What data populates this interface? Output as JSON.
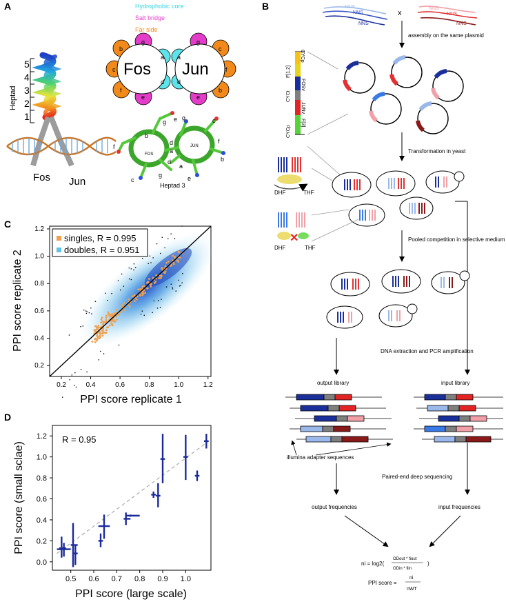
{
  "panels": {
    "a": "A",
    "b": "B",
    "c": "C",
    "d": "D"
  },
  "panel_a": {
    "heptad_label": "Heptad",
    "heptad_numbers": [
      "5",
      "4",
      "3",
      "2",
      "1"
    ],
    "fos_label": "Fos",
    "jun_label": "Jun",
    "legend": {
      "core": "Hydrophobic core",
      "salt": "Salt bridge",
      "far": "Far side"
    },
    "colors": {
      "core": "#5de3ea",
      "salt": "#e33cc9",
      "far": "#f28a1b"
    },
    "wheel_fos": "Fos",
    "wheel_jun": "Jun",
    "fos_petals": [
      "b",
      "c",
      "f",
      "g",
      "e",
      "a",
      "d"
    ],
    "jun_petals": [
      "c",
      "f",
      "b",
      "g",
      "e",
      "a",
      "d"
    ],
    "helix_fos_label": "FOS",
    "helix_jun_label": "JUN",
    "heptad3_label": "Heptad 3",
    "helix_letters": [
      "b",
      "e",
      "a",
      "d",
      "f",
      "g",
      "c",
      "d",
      "g",
      "c",
      "a",
      "f",
      "b",
      "e",
      "g"
    ]
  },
  "panel_b": {
    "nns_labels": [
      "NNS",
      "NNS",
      "NNS",
      "NNS",
      "NNS",
      "NNS"
    ],
    "cross": "x",
    "assembly": "assembly on the same plasmid",
    "bar_labels": [
      "CYCp",
      "F[1,2]",
      "FOSv",
      "CYCt",
      "JUNv",
      "F[3]",
      "CYCp"
    ],
    "transformation": "Transformation in yeast",
    "dhf": "DHF",
    "thf": "THF",
    "dhf2": "DHF",
    "thf2": "THF",
    "pooled": "Pooled competition in selective medium",
    "dna": "DNA extraction and PCR amplification",
    "output_library": "output library",
    "input_library": "input library",
    "illumina": "illumina adapter sequences",
    "paired": "Paired-end deep sequencing",
    "output_freq": "output frequencies",
    "input_freq": "input frequencies",
    "formula_lhs": "ni = log2(",
    "formula_num": "ODout * fiout",
    "formula_den": "ODin * fiin",
    "formula_close": ")",
    "ppi_lhs": "PPI score =",
    "ppi_num": "ni",
    "ppi_den": "nWT"
  },
  "chart_data": [
    {
      "type": "scatter",
      "xlabel": "PPI score replicate 1",
      "ylabel": "PPI score replicate 2",
      "xlim": [
        0.12,
        1.22
      ],
      "ylim": [
        0.12,
        1.22
      ],
      "xticks": [
        "0.2",
        "0.4",
        "0.6",
        "0.8",
        "1.0",
        "1.2"
      ],
      "yticks": [
        "0.2",
        "0.4",
        "0.6",
        "0.8",
        "1.0",
        "1.2"
      ],
      "legend_position": "top-left",
      "series": [
        {
          "name": "singles, R = 0.995",
          "color": "#f0a050"
        },
        {
          "name": "doubles, R = 0.951",
          "color": "#5fc3e8"
        }
      ],
      "diagonal": true
    },
    {
      "type": "scatter",
      "xlabel": "PPI score (large scale)",
      "ylabel": "PPI score (small sclae)",
      "annotation": "R = 0.95",
      "xlim": [
        0.42,
        1.11
      ],
      "ylim": [
        -0.08,
        1.3
      ],
      "xticks": [
        "0.5",
        "0.6",
        "0.7",
        "0.8",
        "0.9",
        "1.0"
      ],
      "yticks": [
        "0.0",
        "0.2",
        "0.4",
        "0.6",
        "0.8",
        "1.0",
        "1.2"
      ],
      "points": [
        {
          "x": 0.46,
          "y": 0.13,
          "ylo": 0.04,
          "yhi": 0.24,
          "xlo": 0.45,
          "xhi": 0.48
        },
        {
          "x": 0.47,
          "y": 0.12,
          "ylo": 0.05,
          "yhi": 0.18,
          "xlo": 0.44,
          "xhi": 0.5
        },
        {
          "x": 0.51,
          "y": 0.16,
          "ylo": -0.05,
          "yhi": 0.37,
          "xlo": 0.5,
          "xhi": 0.53
        },
        {
          "x": 0.52,
          "y": 0.08,
          "ylo": -0.03,
          "yhi": 0.16,
          "xlo": 0.51,
          "xhi": 0.53
        },
        {
          "x": 0.63,
          "y": 0.2,
          "ylo": 0.14,
          "yhi": 0.27,
          "xlo": 0.62,
          "xhi": 0.64
        },
        {
          "x": 0.645,
          "y": 0.34,
          "ylo": 0.22,
          "yhi": 0.45,
          "xlo": 0.62,
          "xhi": 0.67
        },
        {
          "x": 0.74,
          "y": 0.41,
          "ylo": 0.35,
          "yhi": 0.47,
          "xlo": 0.73,
          "xhi": 0.76
        },
        {
          "x": 0.76,
          "y": 0.44,
          "ylo": 0.43,
          "yhi": 0.45,
          "xlo": 0.74,
          "xhi": 0.8
        },
        {
          "x": 0.86,
          "y": 0.64,
          "ylo": 0.61,
          "yhi": 0.67,
          "xlo": 0.85,
          "xhi": 0.87
        },
        {
          "x": 0.88,
          "y": 0.63,
          "ylo": 0.52,
          "yhi": 0.75,
          "xlo": 0.87,
          "xhi": 0.89
        },
        {
          "x": 0.9,
          "y": 0.98,
          "ylo": 0.75,
          "yhi": 1.22,
          "xlo": 0.89,
          "xhi": 0.91
        },
        {
          "x": 1.0,
          "y": 1.0,
          "ylo": 0.78,
          "yhi": 1.21,
          "xlo": 0.99,
          "xhi": 1.01
        },
        {
          "x": 1.05,
          "y": 0.82,
          "ylo": 0.77,
          "yhi": 0.87,
          "xlo": 1.04,
          "xhi": 1.06
        },
        {
          "x": 1.09,
          "y": 1.15,
          "ylo": 1.08,
          "yhi": 1.22,
          "xlo": 1.08,
          "xhi": 1.1
        }
      ],
      "fit_line": true
    }
  ]
}
